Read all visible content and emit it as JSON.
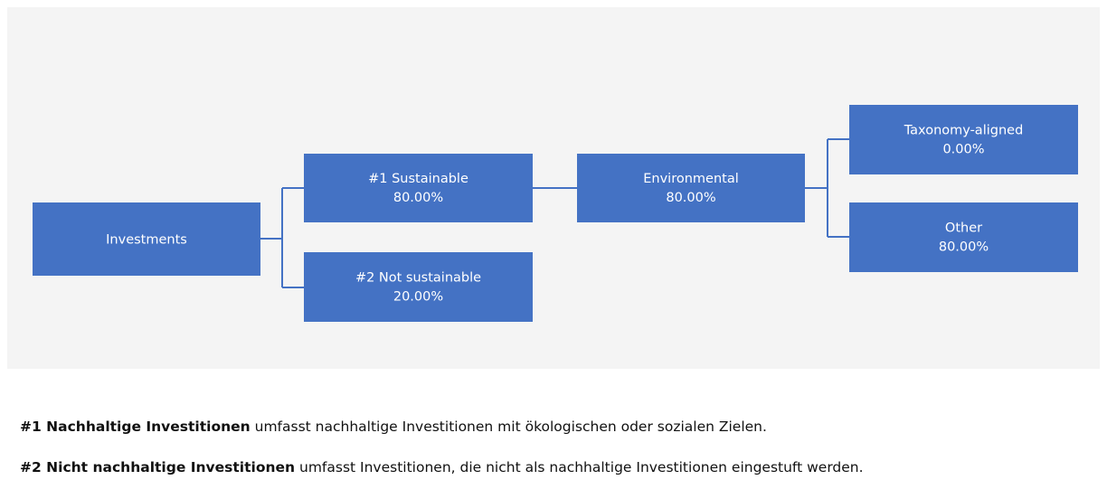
{
  "nodes": [
    {
      "label": "Investments"
    },
    {
      "label": "#1 Sustainable",
      "value": "80.00%"
    },
    {
      "label": "#2 Not sustainable",
      "value": "20.00%"
    },
    {
      "label": "Environmental",
      "value": "80.00%"
    },
    {
      "label": "Taxonomy-aligned",
      "value": "0.00%"
    },
    {
      "label": "Other",
      "value": "80.00%"
    }
  ],
  "notes": [
    {
      "term": "#1 Nachhaltige Investitionen",
      "text": " umfasst nachhaltige Investitionen mit ökologischen oder sozialen Zielen."
    },
    {
      "term": "#2 Nicht nachhaltige Investitionen",
      "text": " umfasst Investitionen, die nicht als nachhaltige Investitionen eingestuft werden."
    }
  ]
}
